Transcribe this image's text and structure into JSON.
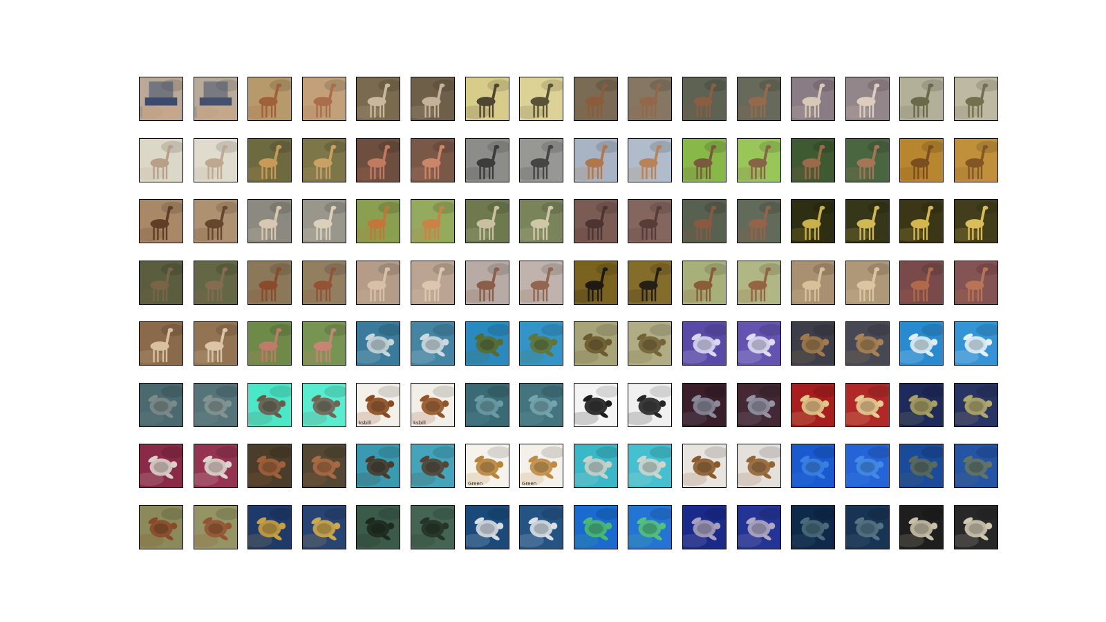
{
  "figure": {
    "rows": 8,
    "cols": 16,
    "row_subjects": [
      "gerenuk",
      "gerenuk",
      "gerenuk",
      "gerenuk",
      "mixed",
      "sea-turtle",
      "sea-turtle",
      "sea-turtle"
    ]
  },
  "tiles": [
    {
      "subject": "person",
      "bg": "#b9a996",
      "fg": "#3b4a6e"
    },
    {
      "subject": "person",
      "bg": "#b8ab9a",
      "fg": "#44506d"
    },
    {
      "subject": "gerenuk",
      "bg": "#b79a6c",
      "fg": "#a0603a"
    },
    {
      "subject": "gerenuk",
      "bg": "#c1a07a",
      "fg": "#aa6f4a"
    },
    {
      "subject": "gerenuk",
      "bg": "#7a6a4e",
      "fg": "#c8b8a0"
    },
    {
      "subject": "gerenuk",
      "bg": "#6e6048",
      "fg": "#c4b39a"
    },
    {
      "subject": "gerenuk",
      "bg": "#d8cc8a",
      "fg": "#4e4630"
    },
    {
      "subject": "gerenuk",
      "bg": "#ddd296",
      "fg": "#5a5236"
    },
    {
      "subject": "gerenuk",
      "bg": "#7a6c54",
      "fg": "#8a5c3c"
    },
    {
      "subject": "gerenuk",
      "bg": "#857762",
      "fg": "#93684a"
    },
    {
      "subject": "gerenuk",
      "bg": "#5e6252",
      "fg": "#8a5e40"
    },
    {
      "subject": "gerenuk",
      "bg": "#676a5a",
      "fg": "#936a4c"
    },
    {
      "subject": "gerenuk",
      "bg": "#8a7c84",
      "fg": "#d8c8b8"
    },
    {
      "subject": "gerenuk",
      "bg": "#93868a",
      "fg": "#dccdbe"
    },
    {
      "subject": "gerenuk",
      "bg": "#b3b09a",
      "fg": "#6a6a4a"
    },
    {
      "subject": "gerenuk",
      "bg": "#bdb9a2",
      "fg": "#72704f"
    },
    {
      "subject": "gerenuk",
      "bg": "#dcd8c8",
      "fg": "#b8a088"
    },
    {
      "subject": "gerenuk",
      "bg": "#e0dccd",
      "fg": "#bfa891"
    },
    {
      "subject": "gerenuk",
      "bg": "#6e6a40",
      "fg": "#c89a5a"
    },
    {
      "subject": "gerenuk",
      "bg": "#7c7648",
      "fg": "#c9a163"
    },
    {
      "subject": "gerenuk",
      "bg": "#6e4e3e",
      "fg": "#c07a60"
    },
    {
      "subject": "gerenuk",
      "bg": "#7a5848",
      "fg": "#c98668"
    },
    {
      "subject": "gerenuk",
      "bg": "#8c8c88",
      "fg": "#3c3c3a"
    },
    {
      "subject": "gerenuk",
      "bg": "#979793",
      "fg": "#454543"
    },
    {
      "subject": "gerenuk",
      "bg": "#a8b4c4",
      "fg": "#b0784a"
    },
    {
      "subject": "gerenuk",
      "bg": "#b0bccb",
      "fg": "#b88356"
    },
    {
      "subject": "gerenuk",
      "bg": "#88b848",
      "fg": "#7a5a3c"
    },
    {
      "subject": "gerenuk",
      "bg": "#98c658",
      "fg": "#876446"
    },
    {
      "subject": "gerenuk",
      "bg": "#3e5a32",
      "fg": "#9a6a4a"
    },
    {
      "subject": "gerenuk",
      "bg": "#4a6640",
      "fg": "#a57656"
    },
    {
      "subject": "gerenuk",
      "bg": "#b8862e",
      "fg": "#7a4e1e"
    },
    {
      "subject": "gerenuk",
      "bg": "#c0903a",
      "fg": "#835626"
    },
    {
      "subject": "gerenuk",
      "bg": "#a88866",
      "fg": "#5e3e24"
    },
    {
      "subject": "gerenuk",
      "bg": "#ae9170",
      "fg": "#66462c"
    },
    {
      "subject": "gerenuk",
      "bg": "#8c8a80",
      "fg": "#d8c8b0"
    },
    {
      "subject": "gerenuk",
      "bg": "#99968c",
      "fg": "#ddd0bb"
    },
    {
      "subject": "gerenuk",
      "bg": "#8aa050",
      "fg": "#c4763a"
    },
    {
      "subject": "gerenuk",
      "bg": "#94aa5c",
      "fg": "#cb8246"
    },
    {
      "subject": "gerenuk",
      "bg": "#6e7a4e",
      "fg": "#c8c0a0"
    },
    {
      "subject": "gerenuk",
      "bg": "#7a845a",
      "fg": "#cec7a8"
    },
    {
      "subject": "gerenuk",
      "bg": "#7a5c54",
      "fg": "#4e3430"
    },
    {
      "subject": "gerenuk",
      "bg": "#85665e",
      "fg": "#583c37"
    },
    {
      "subject": "gerenuk",
      "bg": "#586050",
      "fg": "#8a5a40"
    },
    {
      "subject": "gerenuk",
      "bg": "#626a5a",
      "fg": "#93644a"
    },
    {
      "subject": "gerenuk",
      "bg": "#2e2e12",
      "fg": "#c8b04a"
    },
    {
      "subject": "gerenuk",
      "bg": "#363618",
      "fg": "#cfb855"
    },
    {
      "subject": "gerenuk",
      "bg": "#3a3616",
      "fg": "#d4b650"
    },
    {
      "subject": "gerenuk",
      "bg": "#423e1c",
      "fg": "#dabd5a"
    },
    {
      "subject": "gerenuk",
      "bg": "#5a5e3e",
      "fg": "#7a6448"
    },
    {
      "subject": "gerenuk",
      "bg": "#636746",
      "fg": "#836c50"
    },
    {
      "subject": "gerenuk",
      "bg": "#8a7858",
      "fg": "#8a4a2c"
    },
    {
      "subject": "gerenuk",
      "bg": "#927f60",
      "fg": "#935436"
    },
    {
      "subject": "gerenuk",
      "bg": "#b49c88",
      "fg": "#d8c0a8"
    },
    {
      "subject": "gerenuk",
      "bg": "#bba592",
      "fg": "#dcc6af"
    },
    {
      "subject": "gerenuk",
      "bg": "#b8aaa4",
      "fg": "#8a5e48"
    },
    {
      "subject": "gerenuk",
      "bg": "#c0b2ac",
      "fg": "#926751"
    },
    {
      "subject": "gerenuk",
      "bg": "#7a6220",
      "fg": "#1e1a10"
    },
    {
      "subject": "gerenuk",
      "bg": "#846c2a",
      "fg": "#252014"
    },
    {
      "subject": "gerenuk",
      "bg": "#a8b07a",
      "fg": "#8a5c38"
    },
    {
      "subject": "gerenuk",
      "bg": "#b0b784",
      "fg": "#936542"
    },
    {
      "subject": "gerenuk",
      "bg": "#a89070",
      "fg": "#d8c09a"
    },
    {
      "subject": "gerenuk",
      "bg": "#af9878",
      "fg": "#dcc5a1"
    },
    {
      "subject": "gerenuk",
      "bg": "#7a4a4a",
      "fg": "#b06a4a"
    },
    {
      "subject": "gerenuk",
      "bg": "#845353",
      "fg": "#b87454"
    },
    {
      "subject": "gerenuk",
      "bg": "#8a6a4a",
      "fg": "#d8c0a0"
    },
    {
      "subject": "gerenuk",
      "bg": "#927352",
      "fg": "#dcc5a6"
    },
    {
      "subject": "gerenuk",
      "bg": "#6e8a48",
      "fg": "#c07a6a"
    },
    {
      "subject": "gerenuk",
      "bg": "#789452",
      "fg": "#c88474"
    },
    {
      "subject": "sea-turtle",
      "bg": "#3a7a9a",
      "fg": "#c8d4d8"
    },
    {
      "subject": "sea-turtle",
      "bg": "#4585a4",
      "fg": "#cdd9dd"
    },
    {
      "subject": "sea-turtle",
      "bg": "#2a8ac0",
      "fg": "#5a6a2a"
    },
    {
      "subject": "sea-turtle",
      "bg": "#3494c8",
      "fg": "#647432"
    },
    {
      "subject": "sea-turtle",
      "bg": "#a8a47a",
      "fg": "#6a5a2e"
    },
    {
      "subject": "sea-turtle",
      "bg": "#b0ac84",
      "fg": "#736336"
    },
    {
      "subject": "sea-turtle",
      "bg": "#5a4aa8",
      "fg": "#d8d8f0"
    },
    {
      "subject": "sea-turtle",
      "bg": "#6454b0",
      "fg": "#dcdcf2"
    },
    {
      "subject": "sea-turtle",
      "bg": "#3e3e4a",
      "fg": "#a07a4a"
    },
    {
      "subject": "sea-turtle",
      "bg": "#484854",
      "fg": "#a88252"
    },
    {
      "subject": "sea-turtle",
      "bg": "#2a8ad0",
      "fg": "#e0eef4"
    },
    {
      "subject": "sea-turtle",
      "bg": "#3494d6",
      "fg": "#e4f0f6"
    },
    {
      "subject": "sea-turtle",
      "bg": "#4a6a70",
      "fg": "#7a8a88"
    },
    {
      "subject": "sea-turtle",
      "bg": "#54747a",
      "fg": "#839391"
    },
    {
      "subject": "sea-turtle",
      "bg": "#4ae8c8",
      "fg": "#6a5a4a"
    },
    {
      "subject": "sea-turtle",
      "bg": "#58ecd0",
      "fg": "#736353"
    },
    {
      "subject": "sea-turtle",
      "bg": "#f4f0ea",
      "fg": "#8a4a1e",
      "caption": "ksbill"
    },
    {
      "subject": "sea-turtle",
      "bg": "#f2eee8",
      "fg": "#935426",
      "caption": "ksbill"
    },
    {
      "subject": "sea-turtle",
      "bg": "#3a6a74",
      "fg": "#6a9aa4"
    },
    {
      "subject": "sea-turtle",
      "bg": "#44747e",
      "fg": "#74a4ae"
    },
    {
      "subject": "sea-turtle",
      "bg": "#f4f4f4",
      "fg": "#1e1e1e"
    },
    {
      "subject": "sea-turtle",
      "bg": "#f0f0f0",
      "fg": "#262626"
    },
    {
      "subject": "sea-turtle",
      "bg": "#3a1e2a",
      "fg": "#8a8a9a"
    },
    {
      "subject": "sea-turtle",
      "bg": "#442834",
      "fg": "#9393a3"
    },
    {
      "subject": "sea-turtle",
      "bg": "#a81e1e",
      "fg": "#e0c88a"
    },
    {
      "subject": "sea-turtle",
      "bg": "#b02828",
      "fg": "#e4cd93"
    },
    {
      "subject": "sea-turtle",
      "bg": "#1e2a5a",
      "fg": "#a8a060"
    },
    {
      "subject": "sea-turtle",
      "bg": "#283464",
      "fg": "#b0a86a"
    },
    {
      "subject": "sea-turtle",
      "bg": "#8a2a48",
      "fg": "#d8d0c8"
    },
    {
      "subject": "sea-turtle",
      "bg": "#943452",
      "fg": "#dcd5cd"
    },
    {
      "subject": "sea-turtle",
      "bg": "#4a3e2a",
      "fg": "#a0603a"
    },
    {
      "subject": "sea-turtle",
      "bg": "#544834",
      "fg": "#a86a44"
    },
    {
      "subject": "sea-turtle",
      "bg": "#3a9ab0",
      "fg": "#4a3a2a"
    },
    {
      "subject": "sea-turtle",
      "bg": "#44a4ba",
      "fg": "#544434"
    },
    {
      "subject": "sea-turtle",
      "bg": "#f6f2ec",
      "fg": "#b8843a",
      "caption": "Green"
    },
    {
      "subject": "sea-turtle",
      "bg": "#f4f0ea",
      "fg": "#bf8c44",
      "caption": "Green"
    },
    {
      "subject": "sea-turtle",
      "bg": "#3ab8c8",
      "fg": "#c8d0c8"
    },
    {
      "subject": "sea-turtle",
      "bg": "#44c0d0",
      "fg": "#cdd5cd"
    },
    {
      "subject": "sea-turtle",
      "bg": "#e8e4e0",
      "fg": "#8a5a2a"
    },
    {
      "subject": "sea-turtle",
      "bg": "#e4e0dc",
      "fg": "#936434"
    },
    {
      "subject": "sea-turtle",
      "bg": "#1a5ad0",
      "fg": "#3a80e0"
    },
    {
      "subject": "sea-turtle",
      "bg": "#2464d6",
      "fg": "#448ae4"
    },
    {
      "subject": "sea-turtle",
      "bg": "#1a4a9a",
      "fg": "#5a6a5a"
    },
    {
      "subject": "sea-turtle",
      "bg": "#2454a4",
      "fg": "#647464"
    },
    {
      "subject": "sea-turtle",
      "bg": "#8a8a5a",
      "fg": "#8a4a2a"
    },
    {
      "subject": "sea-turtle",
      "bg": "#949464",
      "fg": "#935434"
    },
    {
      "subject": "sea-turtle",
      "bg": "#1e3a6a",
      "fg": "#c8a040"
    },
    {
      "subject": "sea-turtle",
      "bg": "#284474",
      "fg": "#cfa84a"
    },
    {
      "subject": "sea-turtle",
      "bg": "#3a5a4a",
      "fg": "#1e2a1e"
    },
    {
      "subject": "sea-turtle",
      "bg": "#446454",
      "fg": "#263426"
    },
    {
      "subject": "sea-turtle",
      "bg": "#1a4a7a",
      "fg": "#d8dce0"
    },
    {
      "subject": "sea-turtle",
      "bg": "#245484",
      "fg": "#dce0e4"
    },
    {
      "subject": "sea-turtle",
      "bg": "#1a6ad0",
      "fg": "#4ab870"
    },
    {
      "subject": "sea-turtle",
      "bg": "#2474d6",
      "fg": "#54c07a"
    },
    {
      "subject": "sea-turtle",
      "bg": "#1a2a8a",
      "fg": "#a8a0b8"
    },
    {
      "subject": "sea-turtle",
      "bg": "#243494",
      "fg": "#b0a8c0"
    },
    {
      "subject": "sea-turtle",
      "bg": "#0e2a4a",
      "fg": "#4a6a7a"
    },
    {
      "subject": "sea-turtle",
      "bg": "#183454",
      "fg": "#547484"
    },
    {
      "subject": "sea-turtle",
      "bg": "#1e1e1e",
      "fg": "#c8c0a8"
    },
    {
      "subject": "sea-turtle",
      "bg": "#282828",
      "fg": "#cfc8b1"
    }
  ]
}
